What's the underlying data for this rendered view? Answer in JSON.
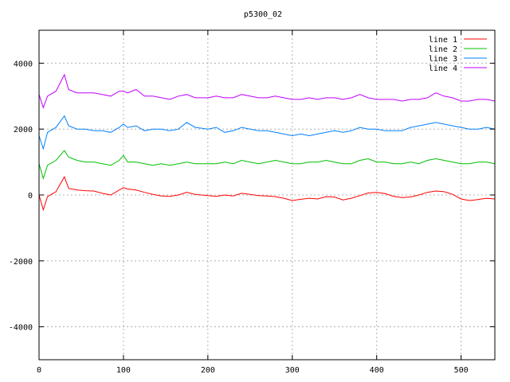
{
  "chart_data": {
    "type": "line",
    "title": "p5300_02",
    "xlabel": "",
    "ylabel": "",
    "xlim": [
      0,
      540
    ],
    "ylim": [
      -5000,
      5000
    ],
    "xticks": [
      0,
      100,
      200,
      300,
      400,
      500
    ],
    "yticks": [
      -4000,
      -2000,
      0,
      2000,
      4000
    ],
    "grid": true,
    "legend_position": "top-right",
    "x": [
      0,
      5,
      10,
      20,
      30,
      35,
      45,
      55,
      65,
      75,
      85,
      95,
      100,
      105,
      115,
      125,
      135,
      145,
      155,
      165,
      175,
      185,
      200,
      210,
      220,
      230,
      240,
      250,
      260,
      270,
      280,
      290,
      300,
      310,
      320,
      330,
      340,
      350,
      360,
      370,
      380,
      390,
      400,
      410,
      420,
      430,
      440,
      450,
      460,
      470,
      480,
      490,
      500,
      510,
      520,
      530,
      540
    ],
    "series": [
      {
        "name": "line 1",
        "color": "#ff0000",
        "values": [
          0,
          -450,
          -50,
          100,
          550,
          200,
          150,
          130,
          120,
          50,
          0,
          150,
          220,
          180,
          150,
          80,
          20,
          -30,
          -40,
          0,
          80,
          20,
          -20,
          -40,
          0,
          -30,
          50,
          20,
          -20,
          -30,
          -50,
          -100,
          -170,
          -130,
          -100,
          -120,
          -50,
          -60,
          -150,
          -100,
          -20,
          60,
          80,
          40,
          -40,
          -80,
          -60,
          0,
          80,
          120,
          100,
          20,
          -120,
          -170,
          -140,
          -100,
          -120
        ]
      },
      {
        "name": "line 2",
        "color": "#00c000",
        "values": [
          950,
          500,
          900,
          1050,
          1350,
          1150,
          1050,
          1000,
          1000,
          950,
          900,
          1050,
          1200,
          1000,
          1000,
          950,
          900,
          950,
          900,
          950,
          1000,
          950,
          950,
          950,
          1000,
          950,
          1050,
          1000,
          950,
          1000,
          1050,
          1000,
          950,
          950,
          1000,
          1000,
          1050,
          1000,
          950,
          950,
          1050,
          1100,
          1000,
          1000,
          950,
          950,
          1000,
          950,
          1050,
          1100,
          1050,
          1000,
          950,
          950,
          1000,
          1000,
          950
        ]
      },
      {
        "name": "line 3",
        "color": "#0080ff",
        "values": [
          1800,
          1400,
          1900,
          2050,
          2400,
          2100,
          2000,
          2000,
          1950,
          1950,
          1900,
          2050,
          2150,
          2050,
          2100,
          1950,
          2000,
          2000,
          1950,
          2000,
          2200,
          2050,
          2000,
          2050,
          1900,
          1950,
          2050,
          2000,
          1950,
          1950,
          1900,
          1850,
          1800,
          1850,
          1800,
          1850,
          1900,
          1950,
          1900,
          1950,
          2050,
          2000,
          2000,
          1950,
          1950,
          1950,
          2050,
          2100,
          2150,
          2200,
          2150,
          2100,
          2050,
          2000,
          2000,
          2050,
          2000
        ]
      },
      {
        "name": "line 4",
        "color": "#c000ff",
        "values": [
          3050,
          2650,
          3000,
          3150,
          3650,
          3200,
          3100,
          3100,
          3100,
          3050,
          3000,
          3150,
          3150,
          3100,
          3200,
          3000,
          3000,
          2950,
          2900,
          3000,
          3050,
          2950,
          2950,
          3000,
          2950,
          2950,
          3050,
          3000,
          2950,
          2950,
          3000,
          2950,
          2900,
          2900,
          2950,
          2900,
          2950,
          2950,
          2900,
          2950,
          3050,
          2950,
          2900,
          2900,
          2900,
          2850,
          2900,
          2900,
          2950,
          3100,
          3000,
          2950,
          2850,
          2850,
          2900,
          2900,
          2850
        ]
      }
    ]
  }
}
